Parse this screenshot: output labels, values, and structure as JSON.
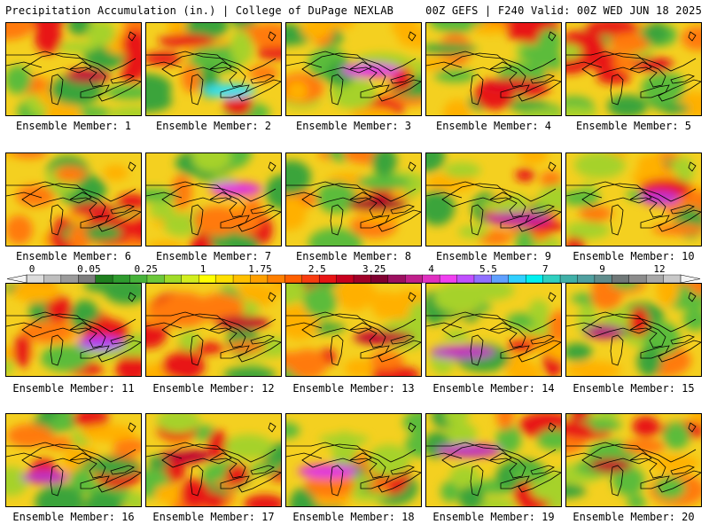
{
  "header": {
    "left": "Precipitation Accumulation (in.) | College of DuPage NEXLAB",
    "right": "00Z GEFS | F240 Valid: 00Z WED JUN 18 2025"
  },
  "members": [
    {
      "label": "Ensemble Member: 1",
      "max_color": "#c0003a"
    },
    {
      "label": "Ensemble Member: 2",
      "max_color": "#30e0f0"
    },
    {
      "label": "Ensemble Member: 3",
      "max_color": "#e030e0"
    },
    {
      "label": "Ensemble Member: 4",
      "max_color": "#e01020"
    },
    {
      "label": "Ensemble Member: 5",
      "max_color": "#e01020"
    },
    {
      "label": "Ensemble Member: 6",
      "max_color": "#e02020"
    },
    {
      "label": "Ensemble Member: 7",
      "max_color": "#e030e0"
    },
    {
      "label": "Ensemble Member: 8",
      "max_color": "#a0002a"
    },
    {
      "label": "Ensemble Member: 9",
      "max_color": "#c020a0"
    },
    {
      "label": "Ensemble Member: 10",
      "max_color": "#c030d0"
    },
    {
      "label": "Ensemble Member: 11",
      "max_color": "#b040f0"
    },
    {
      "label": "Ensemble Member: 12",
      "max_color": "#c0002a"
    },
    {
      "label": "Ensemble Member: 13",
      "max_color": "#c00030"
    },
    {
      "label": "Ensemble Member: 14",
      "max_color": "#c030c0"
    },
    {
      "label": "Ensemble Member: 15",
      "max_color": "#b02080"
    },
    {
      "label": "Ensemble Member: 16",
      "max_color": "#c030c0"
    },
    {
      "label": "Ensemble Member: 17",
      "max_color": "#c00030"
    },
    {
      "label": "Ensemble Member: 18",
      "max_color": "#e030e0"
    },
    {
      "label": "Ensemble Member: 19",
      "max_color": "#c030c0"
    },
    {
      "label": "Ensemble Member: 20",
      "max_color": "#c0002a"
    }
  ],
  "colorbar": {
    "ticks": [
      "0",
      "0.05",
      "0.25",
      "1",
      "1.75",
      "2.5",
      "3.25",
      "4",
      "5.5",
      "7",
      "9",
      "12"
    ],
    "colors": [
      "#dcdcdc",
      "#bebebe",
      "#9b9b9b",
      "#7d7d7d",
      "#1f7f1f",
      "#2e9b2e",
      "#46b23a",
      "#6cc83a",
      "#a0dc28",
      "#d2ee1e",
      "#ffff00",
      "#ffe000",
      "#ffc000",
      "#ffa000",
      "#ff8000",
      "#ff6000",
      "#f83c10",
      "#e81414",
      "#c8001e",
      "#a00028",
      "#800030",
      "#9c1060",
      "#c0208c",
      "#e030c0",
      "#f040f0",
      "#c050ff",
      "#9070ff",
      "#60a0ff",
      "#30d0ff",
      "#00f0f0",
      "#30d0c0",
      "#40b0a8",
      "#50a0a0",
      "#608c8c",
      "#707878",
      "#8c8c8c",
      "#a8a8a8",
      "#c8c8c8"
    ]
  }
}
